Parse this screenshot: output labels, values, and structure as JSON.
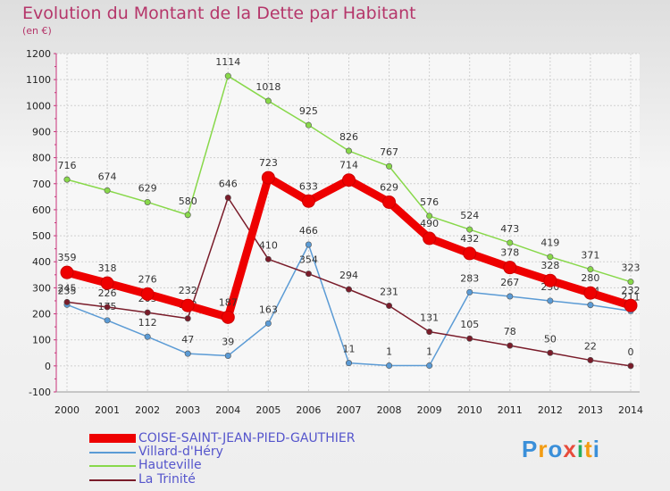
{
  "header": {
    "title": "Evolution du Montant de la Dette par Habitant",
    "subtitle": "(en €)"
  },
  "chart_data": {
    "type": "line",
    "title": "Evolution du Montant de la Dette par Habitant",
    "ylabel": "(en €)",
    "xlabel": "",
    "x": [
      "2000",
      "2001",
      "2002",
      "2003",
      "2004",
      "2005",
      "2006",
      "2007",
      "2008",
      "2009",
      "2010",
      "2011",
      "2012",
      "2013",
      "2014"
    ],
    "ylim": [
      -100,
      1200
    ],
    "yticks": [
      -100,
      0,
      100,
      200,
      300,
      400,
      500,
      600,
      700,
      800,
      900,
      1000,
      1100,
      1200
    ],
    "grid": true,
    "series": [
      {
        "name": "Hauteville",
        "color": "#88d84a",
        "values": [
          716,
          674,
          629,
          580,
          1114,
          1018,
          925,
          826,
          767,
          576,
          524,
          473,
          419,
          371,
          323
        ]
      },
      {
        "name": "Villard-d'Héry",
        "color": "#5b9bd5",
        "values": [
          235,
          175,
          112,
          47,
          39,
          163,
          466,
          11,
          1,
          1,
          283,
          267,
          250,
          234,
          211
        ]
      },
      {
        "name": "La Trinité",
        "color": "#7a1c2a",
        "values": [
          245,
          226,
          205,
          182,
          646,
          410,
          354,
          294,
          231,
          131,
          105,
          78,
          50,
          22,
          0
        ]
      },
      {
        "name": "COISE-SAINT-JEAN-PIED-GAUTHIER",
        "color": "#ee0000",
        "values": [
          359,
          318,
          276,
          232,
          187,
          723,
          633,
          714,
          629,
          490,
          432,
          378,
          328,
          280,
          232
        ]
      }
    ]
  },
  "legend": {
    "items": [
      {
        "label": "COISE-SAINT-JEAN-PIED-GAUTHIER",
        "color": "#ee0000"
      },
      {
        "label": "Villard-d'Héry",
        "color": "#5b9bd5"
      },
      {
        "label": "Hauteville",
        "color": "#88d84a"
      },
      {
        "label": "La Trinité",
        "color": "#7a1c2a"
      }
    ]
  },
  "branding": {
    "logo_text": "Proxiti"
  }
}
